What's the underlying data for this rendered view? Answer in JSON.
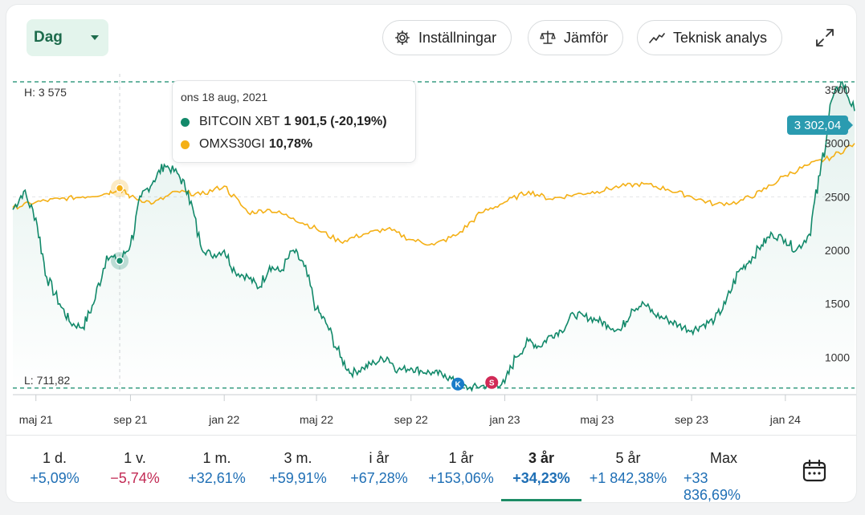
{
  "toolbar": {
    "period_label": "Dag",
    "settings_label": "Inställningar",
    "compare_label": "Jämför",
    "technical_label": "Teknisk analys"
  },
  "chart_data": {
    "type": "line",
    "x_range": [
      "2021-04-01",
      "2024-03-31"
    ],
    "ylim": [
      650,
      3650
    ],
    "y_ticks": [
      1000,
      1500,
      2000,
      2500,
      3000,
      3500
    ],
    "y_tick_labels": [
      "1000",
      "1500",
      "2000",
      "2500",
      "3000",
      "3500"
    ],
    "x_ticks": [
      "maj 21",
      "sep 21",
      "jan 22",
      "maj 22",
      "sep 22",
      "jan 23",
      "maj 23",
      "sep 23",
      "jan 24"
    ],
    "high_label": "H: 3 575",
    "high_value": 3575,
    "low_label": "L: 711,82",
    "low_value": 711.82,
    "last_value_label": "3 302,04",
    "hover_date": "2021-08-18",
    "series": [
      {
        "name": "BITCOIN XBT",
        "color": "#12896a",
        "x": [
          "2021-04-01",
          "2021-04-15",
          "2021-05-01",
          "2021-05-15",
          "2021-06-01",
          "2021-06-15",
          "2021-07-01",
          "2021-07-15",
          "2021-08-01",
          "2021-08-18",
          "2021-09-01",
          "2021-09-15",
          "2021-10-01",
          "2021-10-15",
          "2021-11-01",
          "2021-11-15",
          "2021-12-01",
          "2021-12-15",
          "2022-01-01",
          "2022-01-15",
          "2022-02-01",
          "2022-02-15",
          "2022-03-01",
          "2022-03-15",
          "2022-04-01",
          "2022-04-15",
          "2022-05-01",
          "2022-05-15",
          "2022-06-01",
          "2022-06-15",
          "2022-07-01",
          "2022-07-15",
          "2022-08-01",
          "2022-08-15",
          "2022-09-01",
          "2022-09-15",
          "2022-10-01",
          "2022-10-15",
          "2022-11-01",
          "2022-11-15",
          "2022-12-01",
          "2022-12-15",
          "2023-01-01",
          "2023-01-15",
          "2023-02-01",
          "2023-02-15",
          "2023-03-01",
          "2023-03-15",
          "2023-04-01",
          "2023-04-15",
          "2023-05-01",
          "2023-05-15",
          "2023-06-01",
          "2023-06-15",
          "2023-07-01",
          "2023-07-15",
          "2023-08-01",
          "2023-08-15",
          "2023-09-01",
          "2023-09-15",
          "2023-10-01",
          "2023-10-15",
          "2023-11-01",
          "2023-11-15",
          "2023-12-01",
          "2023-12-15",
          "2024-01-01",
          "2024-01-15",
          "2024-02-01",
          "2024-02-15",
          "2024-03-01",
          "2024-03-15",
          "2024-03-31"
        ],
        "values": [
          2380,
          2550,
          2300,
          1750,
          1500,
          1320,
          1280,
          1500,
          1950,
          1901.5,
          2050,
          2500,
          2650,
          2800,
          2720,
          2550,
          2050,
          1950,
          2000,
          1800,
          1750,
          1650,
          1850,
          1800,
          2000,
          1850,
          1450,
          1300,
          1000,
          850,
          900,
          950,
          1000,
          880,
          900,
          870,
          850,
          840,
          740,
          711.82,
          730,
          740,
          760,
          1000,
          1150,
          1100,
          1200,
          1250,
          1400,
          1380,
          1350,
          1300,
          1250,
          1450,
          1500,
          1400,
          1350,
          1300,
          1250,
          1300,
          1350,
          1500,
          1800,
          1900,
          2050,
          2150,
          2100,
          2000,
          2150,
          2700,
          3400,
          3575,
          3302.04
        ],
        "hover_value": "1 901,5 (-20,19%)"
      },
      {
        "name": "OMXS30GI",
        "color": "#f4b016",
        "x": [
          "2021-04-01",
          "2021-05-01",
          "2021-06-01",
          "2021-07-01",
          "2021-08-01",
          "2021-08-18",
          "2021-09-01",
          "2021-10-01",
          "2021-11-01",
          "2021-12-01",
          "2022-01-01",
          "2022-02-01",
          "2022-03-01",
          "2022-04-01",
          "2022-05-01",
          "2022-06-01",
          "2022-07-01",
          "2022-08-01",
          "2022-09-01",
          "2022-10-01",
          "2022-11-01",
          "2022-12-01",
          "2023-01-01",
          "2023-02-01",
          "2023-03-01",
          "2023-04-01",
          "2023-05-01",
          "2023-06-01",
          "2023-07-01",
          "2023-08-01",
          "2023-09-01",
          "2023-10-01",
          "2023-11-01",
          "2023-12-01",
          "2024-01-01",
          "2024-02-01",
          "2024-03-01",
          "2024-03-31"
        ],
        "values": [
          2400,
          2450,
          2480,
          2500,
          2530,
          2580,
          2500,
          2440,
          2550,
          2520,
          2600,
          2350,
          2380,
          2300,
          2200,
          2080,
          2150,
          2200,
          2100,
          2050,
          2150,
          2350,
          2450,
          2550,
          2480,
          2520,
          2550,
          2600,
          2620,
          2570,
          2500,
          2430,
          2450,
          2550,
          2700,
          2800,
          2870,
          3000
        ],
        "hover_value": "10,78%"
      }
    ]
  },
  "tooltip": {
    "date": "ons 18 aug, 2021",
    "btc_name": "BITCOIN XBT",
    "btc_value": "1 901,5 (-20,19%)",
    "omx_name": "OMXS30GI",
    "omx_value": "10,78%"
  },
  "markers": {
    "k": "K",
    "s": "S"
  },
  "periods": [
    {
      "label": "1 d.",
      "change": "+5,09%",
      "dir": "pos"
    },
    {
      "label": "1 v.",
      "change": "−5,74%",
      "dir": "neg"
    },
    {
      "label": "1 m.",
      "change": "+32,61%",
      "dir": "pos"
    },
    {
      "label": "3 m.",
      "change": "+59,91%",
      "dir": "pos"
    },
    {
      "label": "i år",
      "change": "+67,28%",
      "dir": "pos"
    },
    {
      "label": "1 år",
      "change": "+153,06%",
      "dir": "pos"
    },
    {
      "label": "3 år",
      "change": "+34,23%",
      "dir": "pos",
      "active": true
    },
    {
      "label": "5 år",
      "change": "+1 842,38%",
      "dir": "pos"
    },
    {
      "label": "Max",
      "change": "+33 836,69%",
      "dir": "pos"
    }
  ],
  "colors": {
    "accent": "#1d8c66",
    "positive": "#1f6fb5",
    "negative": "#c22a54",
    "badge": "#2a9bb0"
  }
}
